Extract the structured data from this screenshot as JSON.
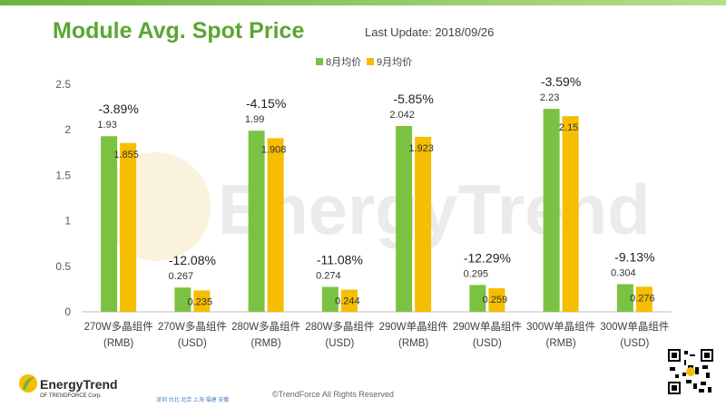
{
  "header": {
    "title": "Module Avg. Spot Price",
    "last_update": "Last Update: 2018/09/26"
  },
  "watermark": "EnergyTrend",
  "footer": {
    "copyright": "©TrendForce All Rights Reserved",
    "cities": "深圳  台北  北京  上海  福建  安徽",
    "logo_name": "EnergyTrend",
    "logo_sub": "OF TRENDFORCE Corp."
  },
  "chart_data": {
    "type": "bar",
    "categories": [
      [
        "270W多晶组件",
        "(RMB)"
      ],
      [
        "270W多晶组件",
        "(USD)"
      ],
      [
        "280W多晶组件",
        "(RMB)"
      ],
      [
        "280W多晶组件",
        "(USD)"
      ],
      [
        "290W单晶组件",
        "(RMB)"
      ],
      [
        "290W单晶组件",
        "(USD)"
      ],
      [
        "300W单晶组件",
        "(RMB)"
      ],
      [
        "300W单晶组件",
        "(USD)"
      ]
    ],
    "series": [
      {
        "name": "8月均价",
        "color": "#7cc242",
        "values": [
          1.93,
          0.267,
          1.99,
          0.274,
          2.042,
          0.295,
          2.23,
          0.304
        ],
        "labels": [
          "1.93",
          "0.267",
          "1.99",
          "0.274",
          "2.042",
          "0.295",
          "2.23",
          "0.304"
        ]
      },
      {
        "name": "9月均价",
        "color": "#f5be00",
        "values": [
          1.855,
          0.235,
          1.908,
          0.244,
          1.923,
          0.259,
          2.15,
          0.276
        ],
        "labels": [
          "1.855",
          "0.235",
          "1.908",
          "0.244",
          "1.923",
          "0.259",
          "2.15",
          "0.276"
        ]
      }
    ],
    "changes": [
      "-3.89%",
      "-12.08%",
      "-4.15%",
      "-11.08%",
      "-5.85%",
      "-12.29%",
      "-3.59%",
      "-9.13%"
    ],
    "ylim": [
      0,
      2.5
    ],
    "yticks": [
      "0",
      "0.5",
      "1",
      "1.5",
      "2",
      "2.5"
    ],
    "legend_position": "top",
    "grid": false
  }
}
